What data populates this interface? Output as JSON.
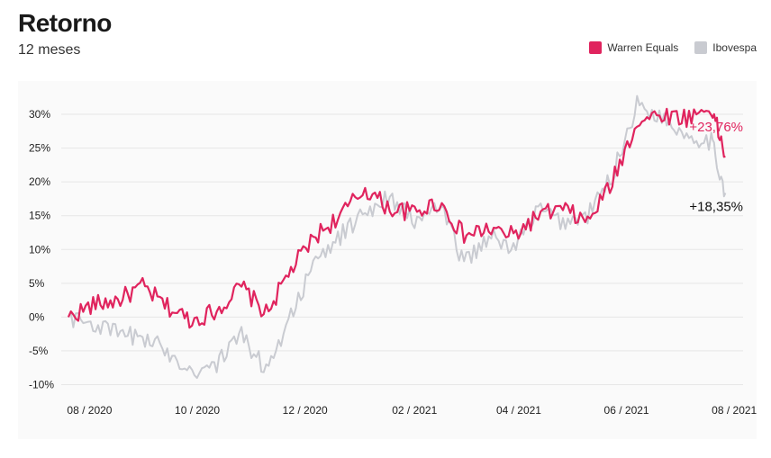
{
  "header": {
    "title": "Retorno",
    "subtitle": "12 meses"
  },
  "legend": {
    "items": [
      {
        "label": "Warren Equals",
        "color": "#e0245e"
      },
      {
        "label": "Ibovespa",
        "color": "#c9cbd1"
      }
    ]
  },
  "chart_data": {
    "type": "line",
    "x_tick_labels": [
      "08 / 2020",
      "10 / 2020",
      "12 / 2020",
      "02 / 2021",
      "04 / 2021",
      "06 / 2021",
      "08 / 2021"
    ],
    "y_tick_labels": [
      "30%",
      "25%",
      "20%",
      "15%",
      "10%",
      "5%",
      "0%",
      "-5%",
      "-10%"
    ],
    "y_ticks": [
      30,
      25,
      20,
      15,
      10,
      5,
      0,
      -5,
      -10
    ],
    "ylim": [
      -11,
      32
    ],
    "grid": true,
    "legend_position": "top-right",
    "x": [
      "2020-08-03",
      "2020-08-17",
      "2020-08-31",
      "2020-09-14",
      "2020-09-28",
      "2020-10-12",
      "2020-10-26",
      "2020-11-09",
      "2020-11-23",
      "2020-12-07",
      "2020-12-21",
      "2021-01-04",
      "2021-01-18",
      "2021-02-01",
      "2021-02-15",
      "2021-03-01",
      "2021-03-15",
      "2021-03-29",
      "2021-04-12",
      "2021-04-26",
      "2021-05-10",
      "2021-05-24",
      "2021-06-07",
      "2021-06-21",
      "2021-07-05",
      "2021-07-19",
      "2021-08-02",
      "2021-08-10"
    ],
    "series": [
      {
        "name": "Warren Equals",
        "color": "#e0245e",
        "values": [
          0,
          1.8,
          2.5,
          4.5,
          1.5,
          -0.5,
          1.0,
          4.5,
          0.5,
          7.0,
          12.0,
          15.0,
          19.0,
          16.0,
          15.5,
          17.0,
          12.0,
          13.0,
          12.0,
          15.0,
          16.0,
          14.0,
          20.0,
          29.0,
          30.0,
          29.5,
          31.0,
          23.76
        ],
        "end_label": "+23,76%"
      },
      {
        "name": "Ibovespa",
        "color": "#c9cbd1",
        "values": [
          0,
          -1.0,
          -2.5,
          -3.0,
          -5.0,
          -8.0,
          -7.0,
          -2.5,
          -8.0,
          0.5,
          8.0,
          12.0,
          15.5,
          18.0,
          14.0,
          16.5,
          8.0,
          12.0,
          10.0,
          16.0,
          14.0,
          15.0,
          21.0,
          31.5,
          29.5,
          27.0,
          26.0,
          18.35
        ],
        "end_label": "+18,35%"
      }
    ]
  }
}
